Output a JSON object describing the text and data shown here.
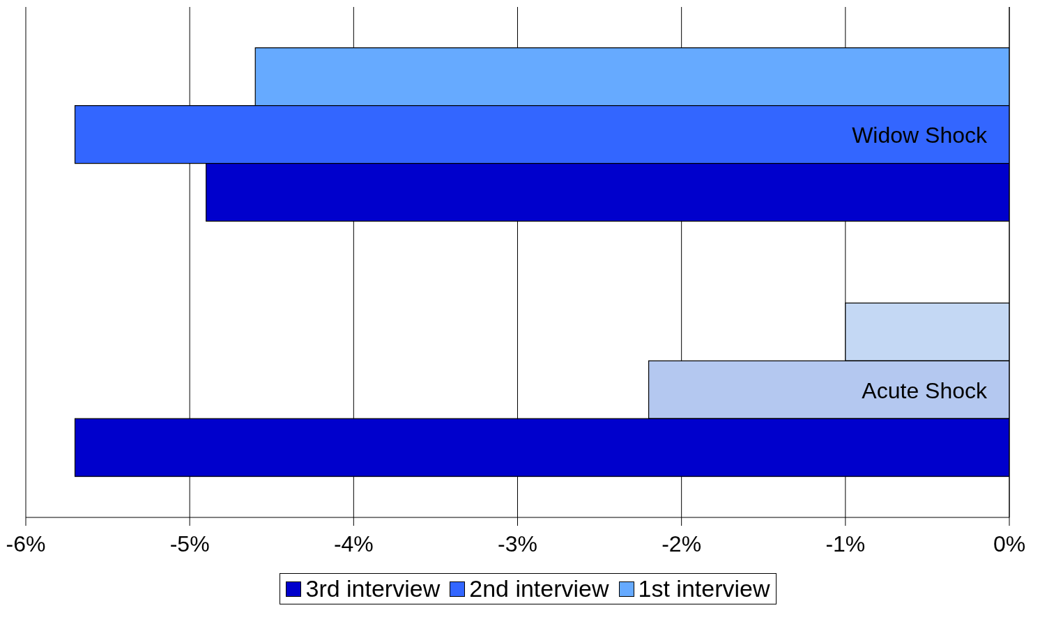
{
  "chart_data": {
    "type": "bar",
    "orientation": "horizontal",
    "categories": [
      "Widow Shock",
      "Acute Shock"
    ],
    "series": [
      {
        "name": "1st interview",
        "color": "#66aaff",
        "colors": [
          "#66aaff",
          "#c4d8f4"
        ],
        "values": [
          -4.6,
          -1.0
        ]
      },
      {
        "name": "2nd interview",
        "color": "#3366ff",
        "colors": [
          "#3366ff",
          "#b4c8f0"
        ],
        "values": [
          -5.7,
          -2.2
        ]
      },
      {
        "name": "3rd interview",
        "color": "#0000cc",
        "values": [
          -4.9,
          -5.7
        ]
      }
    ],
    "xlim": [
      -6,
      0
    ],
    "xticks": [
      {
        "value": -6,
        "label": "-6%"
      },
      {
        "value": -5,
        "label": "-5%"
      },
      {
        "value": -4,
        "label": "-4%"
      },
      {
        "value": -3,
        "label": "-3%"
      },
      {
        "value": -2,
        "label": "-2%"
      },
      {
        "value": -1,
        "label": "-1%"
      },
      {
        "value": 0,
        "label": "0%"
      }
    ],
    "grid": "x",
    "legend": "bottom"
  }
}
